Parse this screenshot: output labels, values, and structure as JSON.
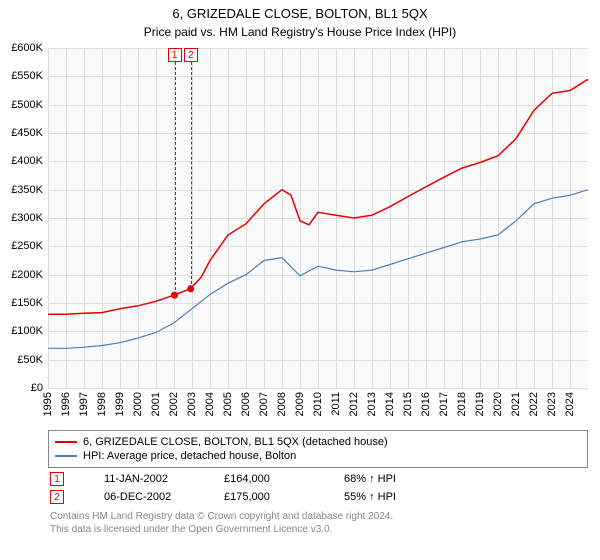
{
  "header": {
    "title": "6, GRIZEDALE CLOSE, BOLTON, BL1 5QX",
    "subtitle": "Price paid vs. HM Land Registry's House Price Index (HPI)"
  },
  "chart": {
    "type": "line",
    "background_color": "#fafafa",
    "grid_color": "#dddddd",
    "axis_color": "#000000",
    "y": {
      "min": 0,
      "max": 600000,
      "step": 50000,
      "labels": [
        "£0",
        "£50K",
        "£100K",
        "£150K",
        "£200K",
        "£250K",
        "£300K",
        "£350K",
        "£400K",
        "£450K",
        "£500K",
        "£550K",
        "£600K"
      ]
    },
    "x": {
      "min": 1995,
      "max": 2025,
      "ticks": [
        1995,
        1996,
        1997,
        1998,
        1999,
        2000,
        2001,
        2002,
        2003,
        2004,
        2005,
        2006,
        2007,
        2008,
        2009,
        2010,
        2011,
        2012,
        2013,
        2014,
        2015,
        2016,
        2017,
        2018,
        2019,
        2020,
        2021,
        2022,
        2023,
        2024
      ]
    },
    "series": [
      {
        "name": "price_paid",
        "color": "#e60000",
        "line_width": 1.5,
        "points": [
          [
            1995.0,
            130000
          ],
          [
            1996.0,
            130000
          ],
          [
            1997.0,
            132000
          ],
          [
            1998.0,
            133000
          ],
          [
            1999.0,
            140000
          ],
          [
            2000.0,
            145000
          ],
          [
            2001.0,
            153000
          ],
          [
            2002.0,
            164000
          ],
          [
            2002.9,
            175000
          ],
          [
            2003.5,
            195000
          ],
          [
            2004.0,
            225000
          ],
          [
            2005.0,
            270000
          ],
          [
            2006.0,
            290000
          ],
          [
            2007.0,
            325000
          ],
          [
            2008.0,
            350000
          ],
          [
            2008.5,
            340000
          ],
          [
            2009.0,
            295000
          ],
          [
            2009.5,
            288000
          ],
          [
            2010.0,
            310000
          ],
          [
            2011.0,
            305000
          ],
          [
            2012.0,
            300000
          ],
          [
            2013.0,
            305000
          ],
          [
            2014.0,
            320000
          ],
          [
            2015.0,
            338000
          ],
          [
            2016.0,
            355000
          ],
          [
            2017.0,
            372000
          ],
          [
            2018.0,
            388000
          ],
          [
            2019.0,
            398000
          ],
          [
            2020.0,
            410000
          ],
          [
            2021.0,
            440000
          ],
          [
            2022.0,
            490000
          ],
          [
            2023.0,
            520000
          ],
          [
            2024.0,
            525000
          ],
          [
            2025.0,
            545000
          ]
        ]
      },
      {
        "name": "hpi",
        "color": "#4a7ebb",
        "line_width": 1.2,
        "points": [
          [
            1995.0,
            70000
          ],
          [
            1996.0,
            70000
          ],
          [
            1997.0,
            72000
          ],
          [
            1998.0,
            75000
          ],
          [
            1999.0,
            80000
          ],
          [
            2000.0,
            88000
          ],
          [
            2001.0,
            98000
          ],
          [
            2002.0,
            115000
          ],
          [
            2003.0,
            140000
          ],
          [
            2004.0,
            165000
          ],
          [
            2005.0,
            185000
          ],
          [
            2006.0,
            200000
          ],
          [
            2007.0,
            225000
          ],
          [
            2008.0,
            230000
          ],
          [
            2009.0,
            198000
          ],
          [
            2010.0,
            215000
          ],
          [
            2011.0,
            208000
          ],
          [
            2012.0,
            205000
          ],
          [
            2013.0,
            208000
          ],
          [
            2014.0,
            218000
          ],
          [
            2015.0,
            228000
          ],
          [
            2016.0,
            238000
          ],
          [
            2017.0,
            248000
          ],
          [
            2018.0,
            258000
          ],
          [
            2019.0,
            263000
          ],
          [
            2020.0,
            270000
          ],
          [
            2021.0,
            295000
          ],
          [
            2022.0,
            325000
          ],
          [
            2023.0,
            335000
          ],
          [
            2024.0,
            340000
          ],
          [
            2025.0,
            350000
          ]
        ]
      }
    ],
    "sale_markers": [
      {
        "id": "1",
        "year": 2002.03,
        "value": 164000,
        "color": "#e60000"
      },
      {
        "id": "2",
        "year": 2002.93,
        "value": 175000,
        "color": "#e60000"
      }
    ],
    "sale_dots": [
      {
        "year": 2002.03,
        "value": 164000,
        "color": "#e60000"
      },
      {
        "year": 2002.93,
        "value": 175000,
        "color": "#e60000"
      }
    ]
  },
  "legend": {
    "items": [
      {
        "color": "#e60000",
        "label": "6, GRIZEDALE CLOSE, BOLTON, BL1 5QX (detached house)"
      },
      {
        "color": "#4a7ebb",
        "label": "HPI: Average price, detached house, Bolton"
      }
    ]
  },
  "sales_table": {
    "rows": [
      {
        "id": "1",
        "date": "11-JAN-2002",
        "price": "£164,000",
        "delta": "68% ↑ HPI",
        "color": "#e60000"
      },
      {
        "id": "2",
        "date": "06-DEC-2002",
        "price": "£175,000",
        "delta": "55% ↑ HPI",
        "color": "#e60000"
      }
    ]
  },
  "credits": {
    "line1": "Contains HM Land Registry data © Crown copyright and database right 2024.",
    "line2": "This data is licensed under the Open Government Licence v3.0."
  }
}
